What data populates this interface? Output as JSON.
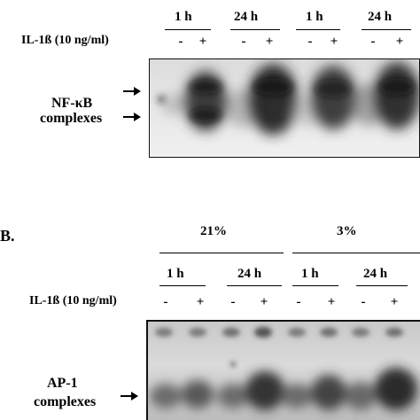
{
  "panel_a": {
    "time_labels": [
      "1 h",
      "24 h",
      "1 h",
      "24 h"
    ],
    "treatment_label": "IL-1ß (10 ng/ml)",
    "signs": [
      "-",
      "+",
      "-",
      "+",
      "-",
      "+",
      "-",
      "+"
    ],
    "complex_label_line1": "NF-κB",
    "complex_label_line2": "complexes"
  },
  "panel_b": {
    "panel_letter": "B.",
    "oxygen_labels": [
      "21%",
      "3%"
    ],
    "time_labels": [
      "1 h",
      "24 h",
      "1 h",
      "24 h"
    ],
    "treatment_label": "IL-1ß (10 ng/ml)",
    "signs": [
      "-",
      "+",
      "-",
      "+",
      "-",
      "+",
      "-",
      "+"
    ],
    "complex_label_line1": "AP-1",
    "complex_label_line2": "complexes"
  }
}
